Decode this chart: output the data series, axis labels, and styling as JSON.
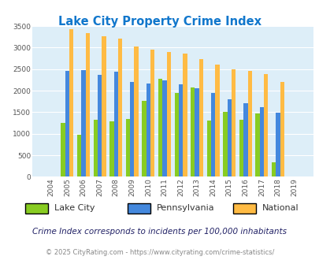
{
  "title": "Lake City Property Crime Index",
  "years": [
    2004,
    2005,
    2006,
    2007,
    2008,
    2009,
    2010,
    2011,
    2012,
    2013,
    2014,
    2015,
    2016,
    2017,
    2018,
    2019
  ],
  "lake_city": [
    0,
    1250,
    980,
    1320,
    1290,
    1350,
    1760,
    2280,
    1950,
    2080,
    1310,
    1500,
    1320,
    1470,
    340,
    0
  ],
  "pennsylvania": [
    0,
    2460,
    2480,
    2370,
    2440,
    2200,
    2160,
    2240,
    2140,
    2060,
    1940,
    1800,
    1710,
    1620,
    1490,
    0
  ],
  "national": [
    0,
    3420,
    3340,
    3260,
    3210,
    3030,
    2950,
    2890,
    2860,
    2730,
    2600,
    2500,
    2460,
    2380,
    2200,
    0
  ],
  "lake_city_color": "#88cc22",
  "pennsylvania_color": "#4488dd",
  "national_color": "#ffbb44",
  "bg_color": "#ddeef8",
  "ylim": [
    0,
    3500
  ],
  "yticks": [
    0,
    500,
    1000,
    1500,
    2000,
    2500,
    3000,
    3500
  ],
  "subtitle": "Crime Index corresponds to incidents per 100,000 inhabitants",
  "footer": "© 2025 CityRating.com - https://www.cityrating.com/crime-statistics/",
  "legend_labels": [
    "Lake City",
    "Pennsylvania",
    "National"
  ],
  "legend_label_color": "#333333",
  "title_color": "#1177cc",
  "subtitle_color": "#222266",
  "footer_color": "#888888",
  "footer_url_color": "#4488cc"
}
